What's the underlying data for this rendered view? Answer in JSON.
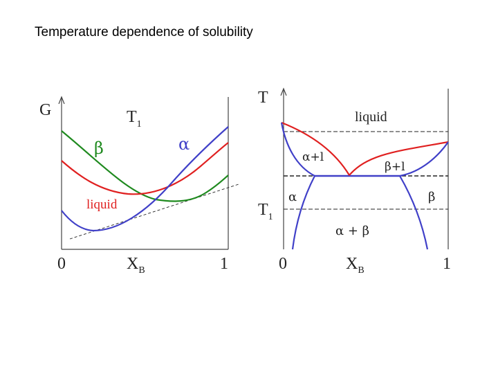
{
  "slide": {
    "title": "Temperature dependence of solubility"
  },
  "gibbs_plot": {
    "y_axis_label": "G",
    "temperature_label": "T",
    "temperature_subscript": "1",
    "phase_beta": "β",
    "phase_alpha": "α",
    "phase_liquid": "liquid",
    "x_min_label": "0",
    "x_max_label": "1",
    "x_axis_label": "X",
    "x_axis_subscript": "B",
    "colors": {
      "beta": "#1f8a1f",
      "alpha": "#4040c8",
      "liquid": "#e02020"
    }
  },
  "phase_diagram": {
    "y_axis_label": "T",
    "t1_label": "T",
    "t1_subscript": "1",
    "region_liquid": "liquid",
    "region_alpha_liquid": "α+l",
    "region_beta_liquid": "β+l",
    "region_alpha": "α",
    "region_beta": "β",
    "region_alpha_beta": "α + β",
    "x_min_label": "0",
    "x_max_label": "1",
    "x_axis_label": "X",
    "x_axis_subscript": "B",
    "colors": {
      "liquidus": "#e02020",
      "solidus": "#4040c8"
    }
  }
}
